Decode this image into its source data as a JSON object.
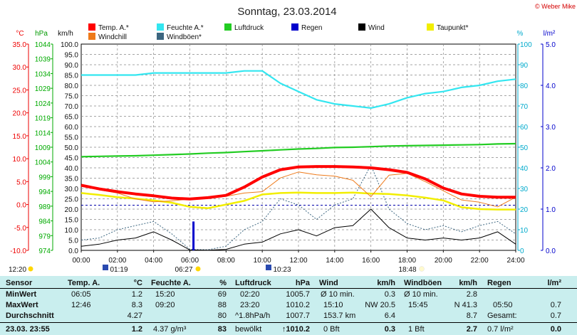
{
  "header": {
    "title": "Sonntag, 23.03.2014",
    "copyright": "© Weber Mike"
  },
  "legend": [
    {
      "label": "Temp. A.*",
      "color": "#ff0000"
    },
    {
      "label": "Feuchte A.*",
      "color": "#33e6f0"
    },
    {
      "label": "Luftdruck",
      "color": "#22cc22"
    },
    {
      "label": "Regen",
      "color": "#0000cc"
    },
    {
      "label": "Wind",
      "color": "#000000"
    },
    {
      "label": "Taupunkt*",
      "color": "#f2ee00"
    },
    {
      "label": "Windchill",
      "color": "#ee7a1a"
    },
    {
      "label": "Windböen*",
      "color": "#3c6680"
    }
  ],
  "axes": {
    "temp_unit": "°C",
    "hpa_unit": "hPa",
    "kmh_unit": "km/h",
    "pct_unit": "%",
    "rain_unit": "l/m²",
    "temp_ticks": [
      "35.0",
      "30.0",
      "25.0",
      "20.0",
      "15.0",
      "10.0",
      "5.0",
      "0.0",
      "-5.0",
      "-10.0"
    ],
    "hpa_ticks": [
      "1044",
      "1039",
      "1034",
      "1029",
      "1024",
      "1019",
      "1014",
      "1009",
      "1004",
      "999",
      "994",
      "989",
      "984",
      "979",
      "974"
    ],
    "kmh_ticks": [
      "100.0",
      "95.0",
      "90.0",
      "85.0",
      "80.0",
      "75.0",
      "70.0",
      "65.0",
      "60.0",
      "55.0",
      "50.0",
      "45.0",
      "40.0",
      "35.0",
      "30.0",
      "25.0",
      "20.0",
      "15.0",
      "10.0",
      "5.0",
      "0.0"
    ],
    "pct_ticks": [
      "100",
      "90",
      "80",
      "70",
      "60",
      "50",
      "40",
      "30",
      "20",
      "10",
      "0"
    ],
    "rain_ticks": [
      "5.0",
      "4.0",
      "3.0",
      "2.0",
      "1.0",
      "0.0"
    ],
    "time_ticks": [
      "00:00",
      "02:00",
      "04:00",
      "06:00",
      "08:00",
      "10:00",
      "12:00",
      "14:00",
      "16:00",
      "18:00",
      "20:00",
      "22:00",
      "24:00"
    ]
  },
  "events": {
    "sunrise": "06:27",
    "sunset": "18:48",
    "moonrise": "01:19",
    "moonset": "10:23",
    "day_length": "12:20"
  },
  "chart_data": {
    "type": "line",
    "x": [
      0,
      1,
      2,
      3,
      4,
      5,
      6,
      7,
      8,
      9,
      10,
      11,
      12,
      13,
      14,
      15,
      16,
      17,
      18,
      19,
      20,
      21,
      22,
      23,
      24
    ],
    "series": [
      {
        "name": "Temp. A.*",
        "axis": "°C",
        "values": [
          4.2,
          3.4,
          2.8,
          2.3,
          1.9,
          1.4,
          1.2,
          1.5,
          2.0,
          3.8,
          6.0,
          7.6,
          8.2,
          8.3,
          8.3,
          8.2,
          8.0,
          7.6,
          7.0,
          5.6,
          3.6,
          2.3,
          1.8,
          1.6,
          1.6
        ]
      },
      {
        "name": "Feuchte A.*",
        "axis": "%",
        "values": [
          85,
          85,
          85,
          85,
          86,
          86,
          86,
          86,
          86,
          87,
          87,
          81,
          77,
          73,
          71,
          70,
          69,
          71,
          74,
          76,
          77,
          79,
          80,
          82,
          83
        ]
      },
      {
        "name": "Luftdruck",
        "axis": "hPa",
        "values": [
          1005.8,
          1005.9,
          1006.0,
          1006.1,
          1006.3,
          1006.5,
          1006.7,
          1007.0,
          1007.2,
          1007.5,
          1007.8,
          1008.1,
          1008.4,
          1008.6,
          1008.9,
          1009.0,
          1009.2,
          1009.4,
          1009.5,
          1009.6,
          1009.7,
          1009.8,
          1009.9,
          1010.1,
          1010.2
        ]
      },
      {
        "name": "Taupunkt*",
        "axis": "°C",
        "values": [
          2.5,
          2.1,
          1.6,
          1.3,
          0.9,
          0.4,
          -0.5,
          -0.8,
          0.0,
          0.8,
          2.2,
          2.5,
          2.6,
          2.5,
          2.5,
          2.6,
          2.4,
          2.3,
          2.0,
          1.5,
          0.9,
          -0.6,
          -1.0,
          -1.1,
          -1.1
        ]
      },
      {
        "name": "Windchill",
        "axis": "°C",
        "values": [
          4.0,
          3.2,
          2.5,
          1.2,
          0.6,
          0.8,
          1.2,
          1.5,
          1.8,
          2.5,
          2.8,
          5.8,
          7.1,
          6.5,
          6.2,
          5.3,
          1.7,
          6.4,
          6.8,
          5.0,
          3.0,
          1.0,
          0.5,
          -0.5,
          1.6
        ]
      },
      {
        "name": "Wind",
        "axis": "km/h",
        "values": [
          2.0,
          3.0,
          5.0,
          6.0,
          9.0,
          5.0,
          0.2,
          0.1,
          0.5,
          3.0,
          4.0,
          8.0,
          10.0,
          7.0,
          11.0,
          12.0,
          20.0,
          11.0,
          6.0,
          5.0,
          6.0,
          5.0,
          6.0,
          9.0,
          3.0
        ]
      },
      {
        "name": "Windböen*",
        "axis": "km/h",
        "values": [
          5.0,
          6.0,
          10.0,
          12.0,
          14.0,
          8.0,
          0.5,
          0.3,
          2.0,
          10.0,
          14.0,
          25.0,
          22.0,
          15.0,
          22.0,
          25.0,
          41.3,
          20.0,
          13.0,
          10.0,
          12.0,
          9.0,
          12.0,
          14.0,
          8.0
        ]
      }
    ],
    "rain": {
      "name": "Regen",
      "axis": "l/m²",
      "x": 6.2,
      "value": 0.7
    }
  },
  "stats": {
    "headers": {
      "sensor": "Sensor",
      "temp": "Temp. A.",
      "temp_unit": "°C",
      "hum": "Feuchte A.",
      "hum_unit": "%",
      "press": "Luftdruck",
      "press_unit": "hPa",
      "wind": "Wind",
      "wind_unit": "km/h",
      "gust": "Windböen",
      "gust_unit": "km/h",
      "rain": "Regen",
      "rain_unit": "l/m²"
    },
    "rows": {
      "min": {
        "label": "MinWert",
        "temp_time": "06:05",
        "temp": "1.2",
        "hum_time": "15:20",
        "hum": "69",
        "press_time": "02:20",
        "press": "1005.7",
        "wind_label": "Ø 10 min.",
        "wind": "0.3",
        "gust_label": "Ø 10 min.",
        "gust": "2.8"
      },
      "max": {
        "label": "MaxWert",
        "temp_time": "12:46",
        "temp": "8.3",
        "hum_time": "09:20",
        "hum": "88",
        "press_time": "23:20",
        "press": "1010.2",
        "wind_label": "15:10",
        "wind_dir": "NW 20.5",
        "gust_label": "15:45",
        "gust_dir": "N 41.3",
        "rain_time": "05:50",
        "rain": "0.7"
      },
      "avg": {
        "label": "Durchschnitt",
        "temp": "4.27",
        "hum": "80",
        "press_trend": "^1.8hPa/h",
        "press": "1007.7",
        "wind_dist": "153.7 km",
        "wind": "6.4",
        "gust": "8.7",
        "rain_label": "Gesamt:",
        "rain": "0.7"
      },
      "now": {
        "label": "23.03. 23:55",
        "temp": "1.2",
        "hum_abs": "4.37 g/m³",
        "hum": "83",
        "press_label": "bewölkt",
        "press": "↑1010.2",
        "wind_bft": "0 Bft",
        "wind": "0.3",
        "gust_bft": "1 Bft",
        "gust": "2.7",
        "rain_label": "0.7 l/m²",
        "rain": "0.0"
      }
    }
  }
}
